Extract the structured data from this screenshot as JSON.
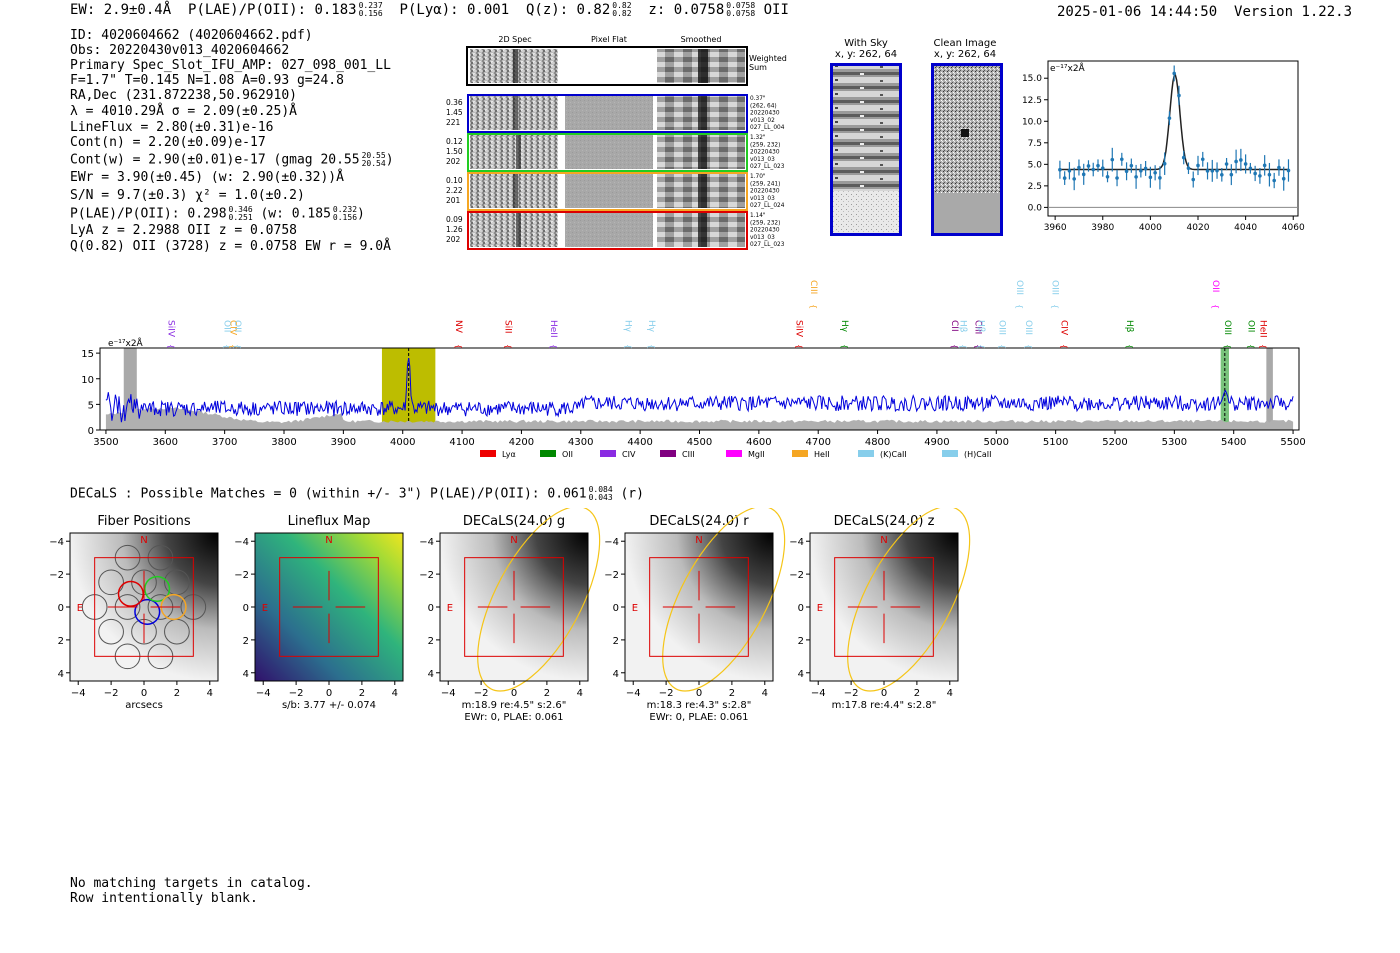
{
  "header": {
    "ew": "EW: 2.9±0.4Å",
    "plae_label": "P(LAE)/P(OII): 0.183",
    "plae_hi": "0.237",
    "plae_lo": "0.156",
    "plya": "P(Lyα): 0.001",
    "qz_label": "Q(z): 0.82",
    "qz_hi": "0.82",
    "qz_lo": "0.82",
    "z_label": "z: 0.0758",
    "z_hi": "0.0758",
    "z_lo": "0.0758",
    "z_line": "OII",
    "timestamp": "2025-01-06 14:44:50",
    "version": "Version 1.22.3"
  },
  "info": {
    "id": "ID: 4020604662 (4020604662.pdf)",
    "obs": "Obs: 20220430v013_4020604662",
    "primary": "Primary Spec_Slot_IFU_AMP: 027_098_001_LL",
    "params": "F=1.7\"  T=0.145  N=1.08  A=0.93  g=24.8",
    "radec": "RA,Dec (231.872238,50.962910)",
    "lambda": "λ = 4010.29Å  σ = 2.09(±0.25)Å",
    "lineflux": "LineFlux = 2.80(±0.31)e-16",
    "contn": "Cont(n) = 2.20(±0.09)e-17",
    "contw": "Cont(w) = 2.90(±0.01)e-17 (gmag 20.55",
    "contw_hi": "20.55",
    "contw_lo": "20.54",
    "contw_end": ")",
    "ewr": "EWr = 3.90(±0.45) (w: 2.90(±0.32))Å",
    "sn": "S/N = 9.7(±0.3)  χ² = 1.0(±0.2)",
    "plae2": "P(LAE)/P(OII): 0.298",
    "plae2_hi": "0.346",
    "plae2_lo": "0.251",
    "plae2_w": "(w: 0.185",
    "plae2_w_hi": "0.232",
    "plae2_w_lo": "0.156",
    "plae2_end": ")",
    "lya": "LyA z = 2.2988  OII z = 0.0758",
    "q": "Q(0.82) OII (3728) z = 0.0758  EW r = 9.0Å"
  },
  "cutouts": {
    "col_2d": "2D Spec",
    "col_flat": "Pixel Flat",
    "col_smooth": "Smoothed",
    "weighted": [
      "Weighted",
      "Sum"
    ],
    "rows": [
      {
        "left": [
          "0.36",
          "1.45",
          "221"
        ],
        "right": [
          "0.37\"",
          "(262, 64)",
          "20220430",
          "v013_02",
          "027_LL_004"
        ],
        "color": "#0000cc"
      },
      {
        "left": [
          "0.12",
          "1.50",
          "202"
        ],
        "right": [
          "1.32\"",
          "(259, 232)",
          "20220430",
          "v013_03",
          "027_LL_023"
        ],
        "color": "#22cc22"
      },
      {
        "left": [
          "0.10",
          "2.22",
          "201"
        ],
        "right": [
          "1.70\"",
          "(259, 241)",
          "20220430",
          "v013_03",
          "027_LL_024"
        ],
        "color": "#f5a623"
      },
      {
        "left": [
          "0.09",
          "1.26",
          "202"
        ],
        "right": [
          "1.14\"",
          "(259, 232)",
          "20220430",
          "v013_03",
          "027_LL_023"
        ],
        "color": "#dd0000"
      }
    ]
  },
  "sky": {
    "with_sky_title": "With Sky",
    "with_sky_xy": "x, y: 262, 64",
    "clean_title": "Clean Image",
    "clean_xy": "x, y: 262, 64"
  },
  "zoom_spectrum": {
    "unit": "e⁻¹⁷x2Å",
    "xticks": [
      "3960",
      "3980",
      "4000",
      "4020",
      "4040",
      "4060"
    ],
    "yticks": [
      "0.0",
      "2.5",
      "5.0",
      "7.5",
      "10.0",
      "12.5",
      "15.0"
    ]
  },
  "full_spectrum": {
    "unit": "e⁻¹⁷x2Å",
    "xticks": [
      "3500",
      "3600",
      "3700",
      "3800",
      "3900",
      "4000",
      "4100",
      "4200",
      "4300",
      "4400",
      "4500",
      "4600",
      "4700",
      "4800",
      "4900",
      "5000",
      "5100",
      "5200",
      "5300",
      "5400",
      "5500"
    ],
    "yticks": [
      "0",
      "5",
      "10",
      "15"
    ],
    "lines": [
      {
        "label": "SiIV",
        "color": "#8a2be2",
        "row": 0
      },
      {
        "label": "OII",
        "color": "#87ceeb",
        "row": 0
      },
      {
        "label": "CIV",
        "color": "#f5a623",
        "row": 0
      },
      {
        "label": "OII",
        "color": "#87ceeb",
        "row": 0
      },
      {
        "label": "NV",
        "color": "#dd0000",
        "row": 0
      },
      {
        "label": "SiII",
        "color": "#dd0000",
        "row": 0
      },
      {
        "label": "HeII",
        "color": "#8a2be2",
        "row": 0
      },
      {
        "label": "Hγ",
        "color": "#87ceeb",
        "row": 0
      },
      {
        "label": "Hγ",
        "color": "#87ceeb",
        "row": 0
      },
      {
        "label": "SiIV",
        "color": "#dd0000",
        "row": 0
      },
      {
        "label": "CIII",
        "color": "#f5a623",
        "row": 1
      },
      {
        "label": "Hγ",
        "color": "#008800",
        "row": 0
      },
      {
        "label": "CII",
        "color": "#800080",
        "row": 0
      },
      {
        "label": "Hβ",
        "color": "#87ceeb",
        "row": 0
      },
      {
        "label": "CIII",
        "color": "#800080",
        "row": 0
      },
      {
        "label": "Hβ",
        "color": "#87ceeb",
        "row": 0
      },
      {
        "label": "OIII",
        "color": "#87ceeb",
        "row": 0
      },
      {
        "label": "OIII",
        "color": "#87ceeb",
        "row": 1
      },
      {
        "label": "OIII",
        "color": "#87ceeb",
        "row": 0
      },
      {
        "label": "OIII",
        "color": "#87ceeb",
        "row": 1
      },
      {
        "label": "CIV",
        "color": "#dd0000",
        "row": 0
      },
      {
        "label": "Hβ",
        "color": "#008800",
        "row": 0
      },
      {
        "label": "OII",
        "color": "#ff00ff",
        "row": 1
      },
      {
        "label": "OIII",
        "color": "#008800",
        "row": 0
      },
      {
        "label": "OII",
        "color": "#008800",
        "row": 0
      },
      {
        "label": "HeII",
        "color": "#dd0000",
        "row": 0
      }
    ],
    "legend": [
      {
        "label": "Lyα",
        "color": "#ee0000"
      },
      {
        "label": "OII",
        "color": "#008800"
      },
      {
        "label": "CIV",
        "color": "#8a2be2"
      },
      {
        "label": "CIII",
        "color": "#800080"
      },
      {
        "label": "MgII",
        "color": "#ff00ff"
      },
      {
        "label": "HeII",
        "color": "#f5a623"
      },
      {
        "label": "(K)CaII",
        "color": "#87ceeb"
      },
      {
        "label": "(H)CaII",
        "color": "#87ceeb"
      }
    ]
  },
  "decals": {
    "summary": "DECaLS : Possible Matches = 0 (within +/- 3\")  P(LAE)/P(OII): 0.061",
    "summary_hi": "0.084",
    "summary_lo": "0.043",
    "summary_band": "(r)",
    "panels": [
      {
        "title": "Fiber Positions",
        "caption1": "arcsecs",
        "caption2": ""
      },
      {
        "title": "Lineflux Map",
        "caption1": "s/b: 3.77 +/- 0.074",
        "caption2": ""
      },
      {
        "title": "DECaLS(24.0) g",
        "caption1": "m:18.9  re:4.5\"  s:2.6\"",
        "caption2": "EWr: 0, PLAE: 0.061"
      },
      {
        "title": "DECaLS(24.0) r",
        "caption1": "m:18.3  re:4.3\"  s:2.8\"",
        "caption2": "EWr: 0, PLAE: 0.061"
      },
      {
        "title": "DECaLS(24.0) z",
        "caption1": "m:17.8  re:4.4\"  s:2.8\"",
        "caption2": ""
      }
    ],
    "axis_ticks": [
      "−4",
      "−2",
      "0",
      "2",
      "4"
    ],
    "north": "N",
    "east": "E"
  },
  "footer": {
    "line1": "No matching targets in catalog.",
    "line2": "Row intentionally blank."
  }
}
